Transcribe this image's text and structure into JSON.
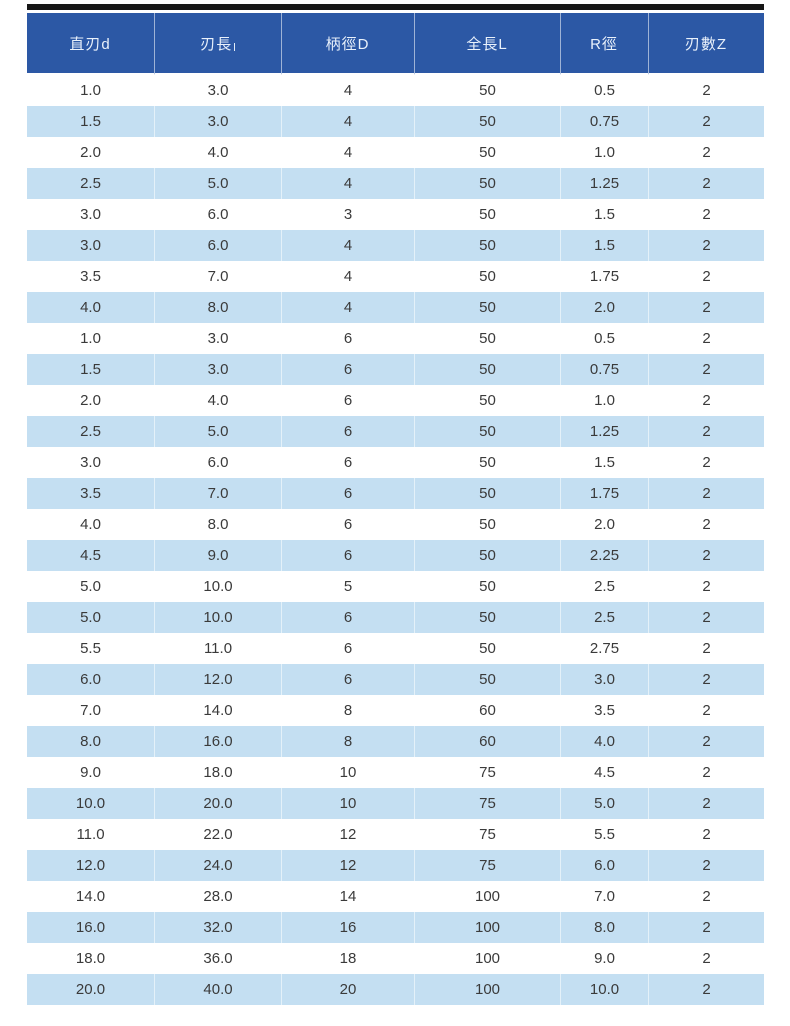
{
  "colors": {
    "top_bar": "#161616",
    "header_background": "#2c58a5",
    "header_text": "#e9f1fb",
    "stripe_blue": "#c4dff2",
    "row_text": "#3a3a3a"
  },
  "table": {
    "headers": [
      {
        "label": "直刃d",
        "sub": ""
      },
      {
        "label": "刃長",
        "sub": "l"
      },
      {
        "label": "柄徑D",
        "sub": ""
      },
      {
        "label": "全長L",
        "sub": ""
      },
      {
        "label": "R徑",
        "sub": ""
      },
      {
        "label": "刃數Z",
        "sub": ""
      }
    ],
    "rows": [
      [
        "1.0",
        "3.0",
        "4",
        "50",
        "0.5",
        "2"
      ],
      [
        "1.5",
        "3.0",
        "4",
        "50",
        "0.75",
        "2"
      ],
      [
        "2.0",
        "4.0",
        "4",
        "50",
        "1.0",
        "2"
      ],
      [
        "2.5",
        "5.0",
        "4",
        "50",
        "1.25",
        "2"
      ],
      [
        "3.0",
        "6.0",
        "3",
        "50",
        "1.5",
        "2"
      ],
      [
        "3.0",
        "6.0",
        "4",
        "50",
        "1.5",
        "2"
      ],
      [
        "3.5",
        "7.0",
        "4",
        "50",
        "1.75",
        "2"
      ],
      [
        "4.0",
        "8.0",
        "4",
        "50",
        "2.0",
        "2"
      ],
      [
        "1.0",
        "3.0",
        "6",
        "50",
        "0.5",
        "2"
      ],
      [
        "1.5",
        "3.0",
        "6",
        "50",
        "0.75",
        "2"
      ],
      [
        "2.0",
        "4.0",
        "6",
        "50",
        "1.0",
        "2"
      ],
      [
        "2.5",
        "5.0",
        "6",
        "50",
        "1.25",
        "2"
      ],
      [
        "3.0",
        "6.0",
        "6",
        "50",
        "1.5",
        "2"
      ],
      [
        "3.5",
        "7.0",
        "6",
        "50",
        "1.75",
        "2"
      ],
      [
        "4.0",
        "8.0",
        "6",
        "50",
        "2.0",
        "2"
      ],
      [
        "4.5",
        "9.0",
        "6",
        "50",
        "2.25",
        "2"
      ],
      [
        "5.0",
        "10.0",
        "5",
        "50",
        "2.5",
        "2"
      ],
      [
        "5.0",
        "10.0",
        "6",
        "50",
        "2.5",
        "2"
      ],
      [
        "5.5",
        "11.0",
        "6",
        "50",
        "2.75",
        "2"
      ],
      [
        "6.0",
        "12.0",
        "6",
        "50",
        "3.0",
        "2"
      ],
      [
        "7.0",
        "14.0",
        "8",
        "60",
        "3.5",
        "2"
      ],
      [
        "8.0",
        "16.0",
        "8",
        "60",
        "4.0",
        "2"
      ],
      [
        "9.0",
        "18.0",
        "10",
        "75",
        "4.5",
        "2"
      ],
      [
        "10.0",
        "20.0",
        "10",
        "75",
        "5.0",
        "2"
      ],
      [
        "11.0",
        "22.0",
        "12",
        "75",
        "5.5",
        "2"
      ],
      [
        "12.0",
        "24.0",
        "12",
        "75",
        "6.0",
        "2"
      ],
      [
        "14.0",
        "28.0",
        "14",
        "100",
        "7.0",
        "2"
      ],
      [
        "16.0",
        "32.0",
        "16",
        "100",
        "8.0",
        "2"
      ],
      [
        "18.0",
        "36.0",
        "18",
        "100",
        "9.0",
        "2"
      ],
      [
        "20.0",
        "40.0",
        "20",
        "100",
        "10.0",
        "2"
      ]
    ]
  }
}
